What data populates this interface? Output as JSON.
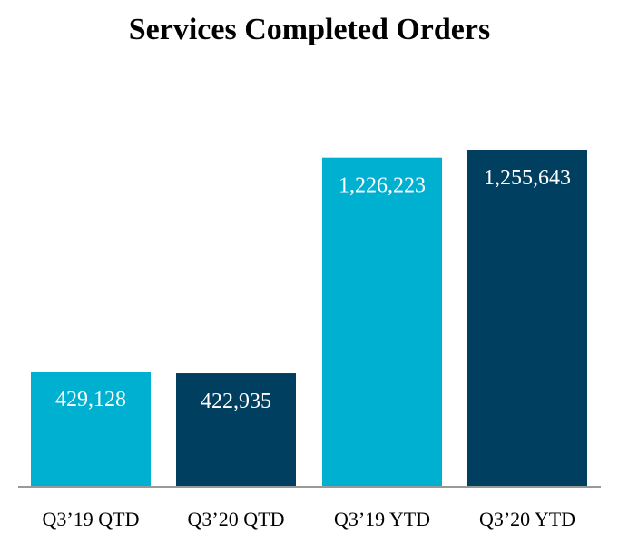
{
  "chart_data": {
    "type": "bar",
    "title": "Services Completed Orders",
    "categories": [
      "Q3’19 QTD",
      "Q3’20 QTD",
      "Q3’19 YTD",
      "Q3’20 YTD"
    ],
    "values": [
      429128,
      422935,
      1226223,
      1255643
    ],
    "value_labels": [
      "429,128",
      "422,935",
      "1,226,223",
      "1,255,643"
    ],
    "colors": [
      "#00B0D0",
      "#003F5F",
      "#00B0D0",
      "#003F5F"
    ],
    "xlabel": "",
    "ylabel": "",
    "ylim": [
      0,
      1255643
    ],
    "grid": false,
    "legend": "none"
  }
}
